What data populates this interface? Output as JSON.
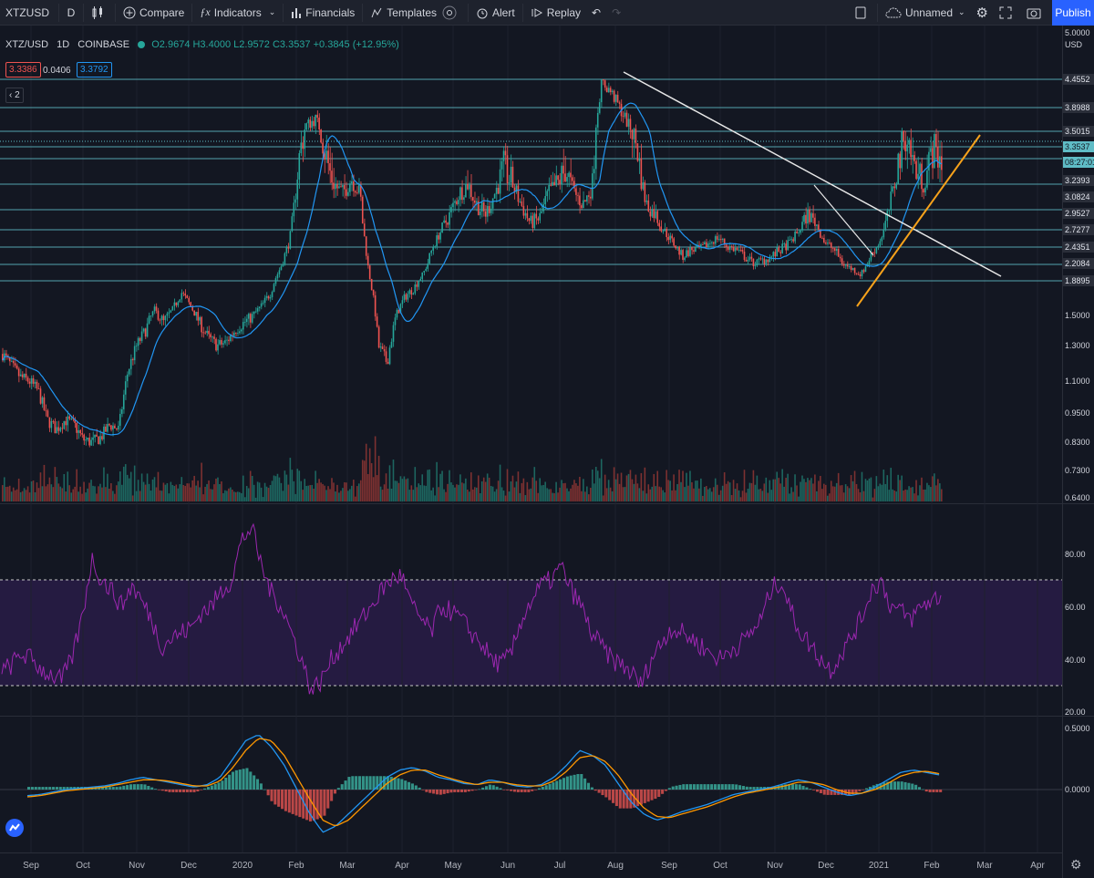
{
  "toolbar": {
    "symbol": "XTZUSD",
    "interval": "D",
    "compare": "Compare",
    "indicators": "Indicators",
    "financials": "Financials",
    "templates": "Templates",
    "alert": "Alert",
    "replay": "Replay",
    "layout_name": "Unnamed",
    "publish": "Publish"
  },
  "legend": {
    "title": "XTZ/USD",
    "interval": "1D",
    "exchange": "COINBASE",
    "ohlc": "O2.9674 H3.4000 L2.9572 C3.3537 +0.3845 (+12.95%)",
    "ma_values": [
      "3.3386",
      "0.0406",
      "3.3792"
    ],
    "collapsed_count": "2"
  },
  "price_axis": {
    "unit": "USD",
    "ticks": [
      "5.0000",
      "1.5000",
      "1.3000",
      "1.1000",
      "0.9500",
      "0.8300",
      "0.7300",
      "0.6400"
    ],
    "levels": [
      "4.4552",
      "3.8988",
      "3.5015",
      "3.3537",
      "08:27:01",
      "3.2393",
      "3.0824",
      "2.9527",
      "2.7277",
      "2.4351",
      "2.2084",
      "1.8895"
    ]
  },
  "rsi_axis": {
    "ticks": [
      "80.00",
      "60.00",
      "40.00",
      "20.00"
    ]
  },
  "macd_axis": {
    "ticks": [
      "0.5000",
      "0.0000"
    ]
  },
  "time_axis": {
    "labels": [
      "Sep",
      "Oct",
      "Nov",
      "Dec",
      "2020",
      "Feb",
      "Mar",
      "Apr",
      "May",
      "Jun",
      "Jul",
      "Aug",
      "Sep",
      "Oct",
      "Nov",
      "Dec",
      "2021",
      "Feb",
      "Mar",
      "Apr"
    ]
  },
  "chart_data": {
    "type": "candlestick",
    "symbol": "XTZ/USD",
    "interval": "1D",
    "close_trace": [
      [
        1.25,
        1.18,
        1.12,
        1.1,
        1.05,
        0.92,
        0.88,
        0.92,
        0.9,
        0.84,
        0.83,
        0.85,
        0.9,
        0.88,
        1.15,
        1.3,
        1.4,
        1.55,
        1.45,
        1.55,
        1.75,
        1.6,
        1.45,
        1.35,
        1.3,
        1.32,
        1.4,
        1.45,
        1.5,
        1.6,
        1.75,
        2.1,
        2.5,
        3.3,
        3.6,
        3.7,
        3.4,
        3.2,
        3.1,
        3.25,
        3.1,
        2.0,
        1.3,
        1.2,
        1.5,
        1.7,
        1.8,
        2.0,
        2.4,
        2.7,
        2.9,
        3.1,
        3.2,
        3.0,
        2.9,
        3.1,
        3.3,
        3.2,
        3.0,
        2.8,
        2.85,
        3.1,
        3.2,
        3.3,
        3.1,
        3.0,
        3.2,
        4.4,
        4.2,
        3.9,
        3.6,
        3.4,
        3.0,
        2.9,
        2.7,
        2.5,
        2.3,
        2.4,
        2.4,
        2.5,
        2.6,
        2.45,
        2.4,
        2.3,
        2.2,
        2.25,
        2.3,
        2.4,
        2.5,
        2.7,
        2.9,
        2.8,
        2.5,
        2.4,
        2.2,
        2.1,
        2.0,
        2.3,
        2.5,
        2.9,
        3.3,
        3.5,
        3.3,
        3.2,
        3.4,
        3.35
      ]
    ],
    "overlay_lines": [
      "trend line",
      "trend line",
      "horizontal levels"
    ],
    "volume": true,
    "rsi": {
      "upper": 70,
      "lower": 30,
      "trace": [
        35,
        38,
        42,
        40,
        36,
        34,
        32,
        40,
        55,
        78,
        70,
        66,
        60,
        68,
        62,
        55,
        45,
        48,
        50,
        52,
        58,
        60,
        66,
        70,
        85,
        90,
        75,
        65,
        60,
        50,
        40,
        28,
        32,
        40,
        45,
        50,
        55,
        60,
        66,
        70,
        72,
        60,
        55,
        50,
        60,
        58,
        55,
        50,
        46,
        40,
        38,
        42,
        55,
        62,
        68,
        70,
        75,
        66,
        60,
        50,
        45,
        40,
        38,
        35,
        30,
        40,
        46,
        52,
        50,
        48,
        45,
        42,
        40,
        44,
        46,
        50,
        55,
        66,
        70,
        58,
        50,
        45,
        40,
        36,
        42,
        48,
        55,
        66,
        70,
        60,
        58,
        55,
        60,
        62,
        64
      ]
    },
    "macd": {
      "zero": 0,
      "macd_line": [
        -0.05,
        -0.04,
        -0.02,
        0.0,
        0.01,
        0.02,
        0.03,
        0.05,
        0.08,
        0.1,
        0.08,
        0.06,
        0.04,
        0.02,
        0.04,
        0.1,
        0.25,
        0.4,
        0.45,
        0.35,
        0.2,
        0.0,
        -0.2,
        -0.35,
        -0.3,
        -0.2,
        -0.1,
        0.0,
        0.1,
        0.16,
        0.18,
        0.15,
        0.1,
        0.08,
        0.05,
        0.04,
        0.08,
        0.06,
        0.03,
        0.02,
        0.04,
        0.1,
        0.2,
        0.32,
        0.28,
        0.2,
        0.05,
        -0.1,
        -0.2,
        -0.25,
        -0.22,
        -0.18,
        -0.15,
        -0.12,
        -0.08,
        -0.04,
        -0.02,
        0.0,
        0.02,
        0.05,
        0.08,
        0.06,
        0.02,
        -0.02,
        -0.05,
        -0.03,
        0.02,
        0.08,
        0.14,
        0.16,
        0.14,
        0.12
      ],
      "signal_line": [
        -0.06,
        -0.05,
        -0.03,
        -0.01,
        0.0,
        0.01,
        0.02,
        0.04,
        0.06,
        0.08,
        0.08,
        0.07,
        0.05,
        0.03,
        0.03,
        0.07,
        0.18,
        0.32,
        0.42,
        0.4,
        0.28,
        0.1,
        -0.08,
        -0.25,
        -0.3,
        -0.25,
        -0.15,
        -0.05,
        0.05,
        0.12,
        0.16,
        0.16,
        0.12,
        0.09,
        0.06,
        0.04,
        0.06,
        0.06,
        0.04,
        0.03,
        0.03,
        0.07,
        0.15,
        0.26,
        0.28,
        0.23,
        0.12,
        -0.03,
        -0.15,
        -0.22,
        -0.23,
        -0.2,
        -0.17,
        -0.14,
        -0.1,
        -0.06,
        -0.03,
        -0.01,
        0.01,
        0.03,
        0.06,
        0.06,
        0.04,
        0.0,
        -0.03,
        -0.03,
        0.0,
        0.05,
        0.11,
        0.14,
        0.15,
        0.13
      ]
    }
  }
}
